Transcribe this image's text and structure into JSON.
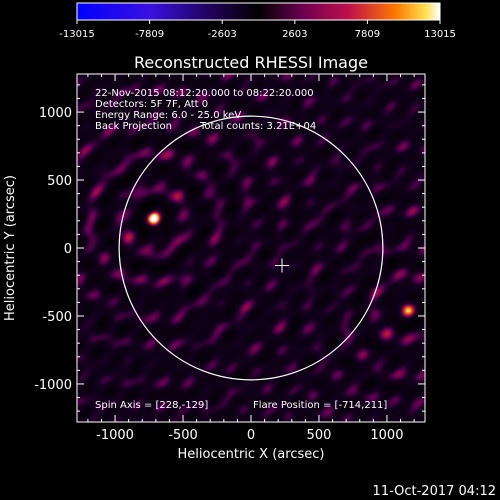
{
  "chart_data": {
    "type": "heatmap",
    "title": "Reconstructed RHESSI Image",
    "xlabel": "Heliocentric X (arcsec)",
    "ylabel": "Heliocentric Y (arcsec)",
    "xlim": [
      -1280,
      1280
    ],
    "ylim": [
      -1280,
      1280
    ],
    "x_ticks": [
      "-1000",
      "-500",
      "0",
      "500",
      "1000"
    ],
    "x_tick_values": [
      -1000,
      -500,
      0,
      500,
      1000
    ],
    "y_ticks": [
      "1000",
      "500",
      "0",
      "-500",
      "-1000"
    ],
    "y_tick_values": [
      1000,
      500,
      0,
      -500,
      -1000
    ],
    "colorbar": {
      "ticks": [
        "-13015",
        "-7809",
        "-2603",
        "2603",
        "7809",
        "13015"
      ],
      "range": [
        -13015,
        13015
      ],
      "colors": [
        "#0000ff",
        "#5a00c0",
        "#000000",
        "#b5005a",
        "#ff5a00",
        "#ffffff"
      ]
    },
    "annotations": {
      "time_range": "22-Nov-2015 08:12:20.000 to 08:22:20.000",
      "detectors": "Detectors: 5F 7F, Att 0",
      "energy_range": "Energy Range: 6.0 - 25.0 keV",
      "method": "Back Projection",
      "total_counts": "Total counts: 3.21E+04",
      "spin_axis": "Spin Axis = [228,-129]",
      "flare_position": "Flare Position = [-714,211]"
    },
    "solar_disk": {
      "center": [
        0,
        0
      ],
      "radius": 970
    },
    "spin_axis_point": [
      228,
      -129
    ],
    "sources": [
      {
        "x": -714,
        "y": 211,
        "peak": 13015
      },
      {
        "x": 1150,
        "y": -450,
        "peak": 11000
      }
    ]
  },
  "footer": {
    "timestamp": "11-Oct-2017 04:12"
  }
}
